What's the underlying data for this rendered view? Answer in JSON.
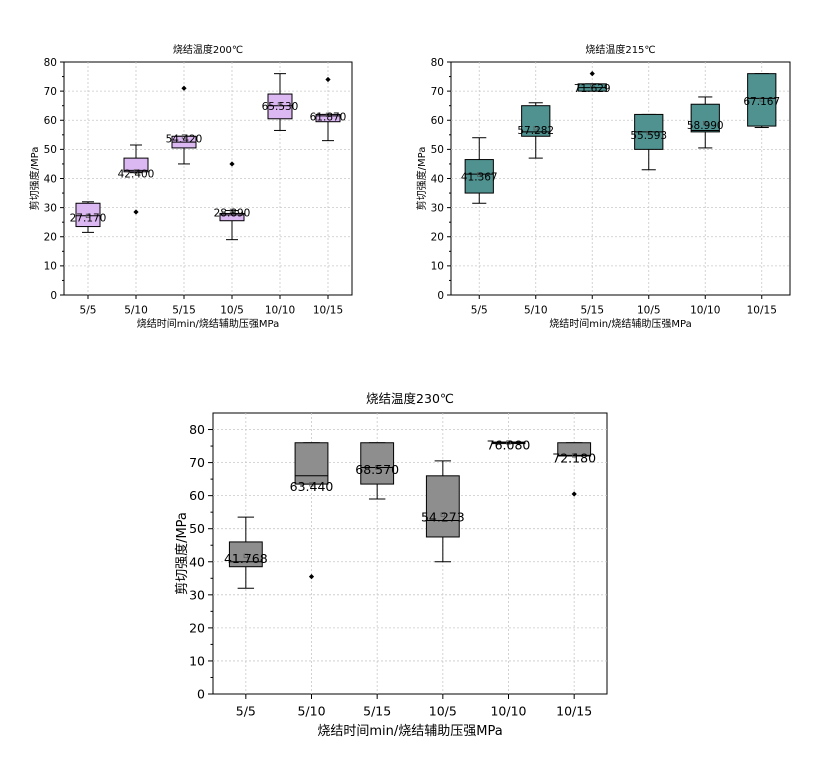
{
  "chart_data": [
    {
      "type": "box",
      "title": "烧结温度200℃",
      "xlabel": "烧结时间min/烧结辅助压强MPa",
      "ylabel": "剪切强度/MPa",
      "ylim": [
        0,
        80
      ],
      "yticks": [
        "0",
        "10",
        "20",
        "30",
        "40",
        "50",
        "60",
        "70",
        "80"
      ],
      "grid": true,
      "color": "#dcb8f2",
      "categories": [
        "5/5",
        "5/10",
        "5/15",
        "10/5",
        "10/10",
        "10/15"
      ],
      "boxes": [
        {
          "category": "5/5",
          "whisker_low": 21.5,
          "q1": 23.5,
          "median": 27.2,
          "q3": 31.5,
          "whisker_high": 32.0,
          "mean": 27.17,
          "outliers": []
        },
        {
          "category": "5/10",
          "whisker_low": 42.0,
          "q1": 42.3,
          "median": 42.8,
          "q3": 47.0,
          "whisker_high": 51.5,
          "mean": 42.4,
          "outliers": [
            28.5
          ]
        },
        {
          "category": "5/15",
          "whisker_low": 45.0,
          "q1": 50.5,
          "median": 52.5,
          "q3": 54.5,
          "whisker_high": 54.5,
          "mean": 54.42,
          "outliers": [
            71.0
          ]
        },
        {
          "category": "10/5",
          "whisker_low": 19.0,
          "q1": 25.5,
          "median": 27.5,
          "q3": 28.0,
          "whisker_high": 29.0,
          "mean": 28.89,
          "outliers": [
            45.0
          ]
        },
        {
          "category": "10/10",
          "whisker_low": 56.5,
          "q1": 60.5,
          "median": 65.0,
          "q3": 69.0,
          "whisker_high": 76.0,
          "mean": 65.53,
          "outliers": []
        },
        {
          "category": "10/15",
          "whisker_low": 53.0,
          "q1": 59.5,
          "median": 61.5,
          "q3": 62.0,
          "whisker_high": 62.0,
          "mean": 61.87,
          "outliers": [
            74.0
          ]
        }
      ],
      "mean_labels": [
        "27.170",
        "42.400",
        "54.420",
        "28.890",
        "65.530",
        "61.870"
      ]
    },
    {
      "type": "box",
      "title": "烧结温度215℃",
      "xlabel": "烧结时间min/烧结辅助压强MPa",
      "ylabel": "剪切强度/MPa",
      "ylim": [
        0,
        80
      ],
      "yticks": [
        "0",
        "10",
        "20",
        "30",
        "40",
        "50",
        "60",
        "70",
        "80"
      ],
      "grid": true,
      "color": "#4f9290",
      "categories": [
        "5/5",
        "5/10",
        "5/15",
        "10/5",
        "10/10",
        "10/15"
      ],
      "boxes": [
        {
          "category": "5/5",
          "whisker_low": 31.5,
          "q1": 35.0,
          "median": 41.5,
          "q3": 46.5,
          "whisker_high": 54.0,
          "mean": 41.367,
          "outliers": []
        },
        {
          "category": "5/10",
          "whisker_low": 47.0,
          "q1": 54.5,
          "median": 56.0,
          "q3": 65.0,
          "whisker_high": 66.0,
          "mean": 57.282,
          "outliers": []
        },
        {
          "category": "5/15",
          "whisker_low": 70.0,
          "q1": 70.0,
          "median": 71.2,
          "q3": 72.5,
          "whisker_high": 72.5,
          "mean": 71.629,
          "outliers": [
            76.0
          ]
        },
        {
          "category": "10/5",
          "whisker_low": 43.0,
          "q1": 50.0,
          "median": 56.0,
          "q3": 62.0,
          "whisker_high": 62.0,
          "mean": 55.593,
          "outliers": []
        },
        {
          "category": "10/10",
          "whisker_low": 50.5,
          "q1": 56.0,
          "median": 56.5,
          "q3": 65.5,
          "whisker_high": 68.0,
          "mean": 58.99,
          "outliers": []
        },
        {
          "category": "10/15",
          "whisker_low": 57.5,
          "q1": 58.0,
          "median": 67.5,
          "q3": 76.0,
          "whisker_high": 76.0,
          "mean": 67.167,
          "outliers": []
        }
      ],
      "mean_labels": [
        "41.367",
        "57.282",
        "71.629",
        "55.593",
        "58.990",
        "67.167"
      ]
    },
    {
      "type": "box",
      "title": "烧结温度230℃",
      "xlabel": "烧结时间min/烧结辅助压强MPa",
      "ylabel": "剪切强度/MPa",
      "ylim": [
        0,
        85
      ],
      "yticks": [
        "0",
        "10",
        "20",
        "30",
        "40",
        "50",
        "60",
        "70",
        "80"
      ],
      "grid": true,
      "color": "#8e8e8e",
      "categories": [
        "5/5",
        "5/10",
        "5/15",
        "10/5",
        "10/10",
        "10/15"
      ],
      "boxes": [
        {
          "category": "5/5",
          "whisker_low": 32.0,
          "q1": 38.5,
          "median": 40.0,
          "q3": 46.0,
          "whisker_high": 53.5,
          "mean": 41.768,
          "outliers": []
        },
        {
          "category": "5/10",
          "whisker_low": 63.5,
          "q1": 63.5,
          "median": 66.0,
          "q3": 76.0,
          "whisker_high": 76.0,
          "mean": 63.44,
          "outliers": [
            35.5
          ]
        },
        {
          "category": "5/15",
          "whisker_low": 59.0,
          "q1": 63.5,
          "median": 68.5,
          "q3": 76.0,
          "whisker_high": 76.0,
          "mean": 68.57,
          "outliers": []
        },
        {
          "category": "10/5",
          "whisker_low": 40.0,
          "q1": 47.5,
          "median": 52.5,
          "q3": 66.0,
          "whisker_high": 70.5,
          "mean": 54.273,
          "outliers": []
        },
        {
          "category": "10/10",
          "whisker_low": 76.0,
          "q1": 76.0,
          "median": 76.08,
          "q3": 76.2,
          "whisker_high": 76.2,
          "mean": 76.08,
          "outliers": []
        },
        {
          "category": "10/15",
          "whisker_low": 72.0,
          "q1": 72.0,
          "median": 72.2,
          "q3": 76.0,
          "whisker_high": 76.0,
          "mean": 72.18,
          "outliers": [
            60.5
          ]
        }
      ],
      "mean_labels": [
        "41.768",
        "63.440",
        "68.570",
        "54.273",
        "76.080",
        "72.180"
      ]
    }
  ]
}
